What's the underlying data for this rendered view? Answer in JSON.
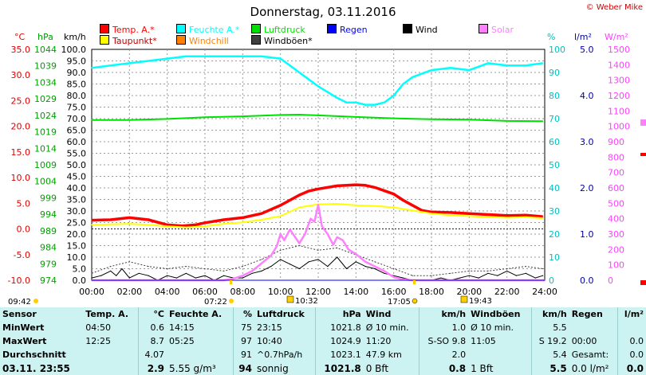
{
  "title": "Donnerstag, 03.11.2016",
  "copyright": "© Weber Mike",
  "legend": [
    {
      "label": "Temp. A.*",
      "color": "#ff0000"
    },
    {
      "label": "Feuchte A.*",
      "color": "#00ffff"
    },
    {
      "label": "Luftdruck",
      "color": "#00e000"
    },
    {
      "label": "Regen",
      "color": "#0000ff"
    },
    {
      "label": "Wind",
      "color": "#000000"
    },
    {
      "label": "Solar",
      "color": "#ff80ff"
    },
    {
      "label": "Taupunkt*",
      "color": "#ffff00"
    },
    {
      "label": "Windchill",
      "color": "#ff8000"
    },
    {
      "label": "Windböen*",
      "color": "#404040"
    }
  ],
  "axis_units": {
    "temp": "°C",
    "pressure": "hPa",
    "wind": "km/h",
    "humidity": "%",
    "rain": "l/m²",
    "solar": "W/m²"
  },
  "chart_data": {
    "type": "line",
    "title": "Donnerstag, 03.11.2016",
    "x_ticks": [
      "00:00",
      "02:00",
      "04:00",
      "06:00",
      "08:00",
      "10:00",
      "12:00",
      "14:00",
      "16:00",
      "18:00",
      "20:00",
      "22:00",
      "24:00"
    ],
    "axes": {
      "temp": {
        "label": "°C",
        "ylim": [
          -10,
          35
        ],
        "ticks": [
          "35.0",
          "30.0",
          "25.0",
          "20.0",
          "15.0",
          "10.0",
          "5.0",
          "0.0",
          "-5.0",
          "-10.0"
        ],
        "color": "#e00000"
      },
      "pressure": {
        "label": "hPa",
        "ylim": [
          974,
          1044
        ],
        "ticks": [
          "1044",
          "1039",
          "1034",
          "1029",
          "1024",
          "1019",
          "1014",
          "1009",
          "1004",
          "999",
          "994",
          "989",
          "984",
          "979",
          "974"
        ],
        "color": "#00a000"
      },
      "wind": {
        "label": "km/h",
        "ylim": [
          0,
          100
        ],
        "ticks": [
          "100.0",
          "95.0",
          "90.0",
          "85.0",
          "80.0",
          "75.0",
          "70.0",
          "65.0",
          "60.0",
          "55.0",
          "50.0",
          "45.0",
          "40.0",
          "35.0",
          "30.0",
          "25.0",
          "20.0",
          "15.0",
          "10.0",
          "5.0",
          "0.0"
        ],
        "color": "#000000"
      },
      "humidity": {
        "label": "%",
        "ylim": [
          0,
          100
        ],
        "ticks": [
          "100",
          "90",
          "80",
          "70",
          "60",
          "50",
          "40",
          "30",
          "20",
          "10",
          "0"
        ],
        "color": "#00c0c0"
      },
      "rain": {
        "label": "l/m²",
        "ylim": [
          0,
          5
        ],
        "ticks": [
          "5.0",
          "4.0",
          "3.0",
          "2.0",
          "1.0",
          "0.0"
        ],
        "color": "#0000a0"
      },
      "solar": {
        "label": "W/m²",
        "ylim": [
          0,
          1500
        ],
        "ticks": [
          "1500",
          "1400",
          "1300",
          "1200",
          "1100",
          "1000",
          "900",
          "800",
          "700",
          "600",
          "500",
          "400",
          "300",
          "200",
          "100",
          "0"
        ],
        "color": "#ff40ff"
      }
    },
    "series": [
      {
        "name": "Temp. A.*",
        "axis": "temp",
        "color": "#ff0000",
        "x": [
          0,
          1,
          2,
          3,
          4,
          4.8,
          5.5,
          6,
          7,
          8,
          9,
          10,
          11,
          11.5,
          12,
          13,
          14,
          14.5,
          15,
          16,
          16.5,
          17,
          17.5,
          18,
          19,
          20,
          21,
          22,
          23,
          23.9
        ],
        "y": [
          1.7,
          1.8,
          2.2,
          1.8,
          0.8,
          0.6,
          0.8,
          1.2,
          1.8,
          2.2,
          3.0,
          4.6,
          6.6,
          7.4,
          7.8,
          8.4,
          8.6,
          8.5,
          8.1,
          6.8,
          5.6,
          4.6,
          3.6,
          3.3,
          3.2,
          3.0,
          2.8,
          2.6,
          2.7,
          2.4
        ]
      },
      {
        "name": "Taupunkt*",
        "axis": "temp",
        "color": "#ffff00",
        "x": [
          0,
          1,
          2,
          3,
          4,
          5,
          6,
          7,
          8,
          9,
          10,
          11,
          12,
          13,
          14,
          15,
          16,
          17,
          18,
          19,
          20,
          21,
          22,
          23,
          23.9
        ],
        "y": [
          0.8,
          0.9,
          1.0,
          0.8,
          0.5,
          0.3,
          0.5,
          1.0,
          1.3,
          1.8,
          2.5,
          4.2,
          4.8,
          4.9,
          4.6,
          4.5,
          4.2,
          3.6,
          3.0,
          2.7,
          2.5,
          2.3,
          2.2,
          2.3,
          2.1
        ]
      },
      {
        "name": "Feuchte A.*",
        "axis": "humidity",
        "color": "#00ffff",
        "x": [
          0,
          1,
          2,
          3,
          4,
          5,
          6,
          7,
          8,
          9,
          10,
          10.5,
          11,
          12,
          13,
          13.5,
          14,
          14.5,
          15,
          15.5,
          16,
          16.5,
          17,
          18,
          19,
          20,
          21,
          22,
          23,
          23.9
        ],
        "y": [
          92,
          93,
          94,
          95,
          96,
          97,
          97,
          97,
          97,
          97,
          96,
          93,
          90,
          84,
          79,
          77,
          77,
          76,
          76,
          77,
          80,
          85,
          88,
          91,
          92,
          91,
          94,
          93,
          93,
          94
        ]
      },
      {
        "name": "Luftdruck",
        "axis": "pressure",
        "color": "#00e000",
        "x": [
          0,
          2,
          4,
          6,
          8,
          10,
          11,
          12,
          14,
          16,
          18,
          20,
          22,
          23.9
        ],
        "y": [
          1022.6,
          1022.6,
          1022.9,
          1023.4,
          1023.7,
          1024.1,
          1024.2,
          1024.0,
          1023.5,
          1023.1,
          1022.8,
          1022.7,
          1022.3,
          1022.2
        ]
      },
      {
        "name": "Wind",
        "axis": "wind",
        "color": "#000000",
        "x": [
          0,
          0.5,
          1,
          1.3,
          1.6,
          2,
          2.5,
          3,
          3.5,
          4,
          4.5,
          5,
          5.5,
          6,
          6.5,
          7,
          7.5,
          8,
          8.5,
          9,
          9.5,
          10,
          10.5,
          11,
          11.5,
          12,
          12.5,
          13,
          13.5,
          14,
          14.5,
          15,
          15.5,
          16,
          16.5,
          17,
          17.5,
          18,
          18.5,
          19,
          19.5,
          20,
          20.5,
          21,
          21.5,
          22,
          22.5,
          23,
          23.5,
          23.9
        ],
        "y": [
          1,
          2,
          4,
          2,
          5,
          1,
          3,
          2,
          0,
          2,
          1,
          3,
          1,
          2,
          0,
          2,
          1,
          1,
          3,
          4,
          6,
          9,
          7,
          5,
          8,
          9,
          6,
          10,
          5,
          8,
          6,
          5,
          3,
          2,
          1,
          0,
          0,
          0,
          1,
          0,
          1,
          2,
          1,
          3,
          2,
          4,
          2,
          3,
          1,
          2
        ]
      },
      {
        "name": "Windböen*",
        "axis": "wind",
        "color": "#404040",
        "x": [
          0,
          1,
          2,
          3,
          4,
          5,
          6,
          7,
          8,
          9,
          10,
          11,
          12,
          13,
          14,
          15,
          16,
          17,
          18,
          19,
          20,
          21,
          22,
          23,
          23.9
        ],
        "y": [
          3,
          6,
          8,
          6,
          5,
          6,
          5,
          4,
          6,
          9,
          13,
          15,
          13,
          14,
          11,
          8,
          5,
          2,
          2,
          3,
          4,
          4,
          5,
          6,
          5
        ]
      },
      {
        "name": "Solar",
        "axis": "solar",
        "color": "#ff80ff",
        "x": [
          0,
          7,
          7.5,
          8,
          8.5,
          9,
          9.5,
          9.8,
          10,
          10.2,
          10.5,
          11,
          11.3,
          11.6,
          11.8,
          12,
          12.2,
          12.5,
          12.8,
          13,
          13.3,
          13.6,
          14,
          14.5,
          15,
          15.5,
          16,
          16.5,
          17,
          24
        ],
        "y": [
          0,
          0,
          10,
          30,
          60,
          110,
          160,
          220,
          300,
          260,
          330,
          240,
          300,
          400,
          380,
          490,
          350,
          300,
          230,
          280,
          260,
          200,
          170,
          120,
          90,
          60,
          20,
          5,
          0,
          0
        ]
      },
      {
        "name": "Regen",
        "axis": "rain",
        "color": "#0000ff",
        "x": [
          0,
          24
        ],
        "y": [
          0,
          0
        ]
      }
    ]
  },
  "sun_marks": {
    "sunrise": "07:22",
    "sunset": "17:05",
    "moonrise": "09:42",
    "moon_a": "10:32",
    "moon_b": "19:43"
  },
  "stats_table": {
    "headers": [
      "Sensor",
      "Temp. A.",
      "°C",
      "Feuchte A.",
      "%",
      "Luftdruck",
      "hPa",
      "Wind",
      "km/h",
      "Windböen",
      "km/h",
      "Regen",
      "l/m²"
    ],
    "rows": [
      [
        "MinWert",
        "04:50",
        "0.6",
        "14:15",
        "75",
        "23:15",
        "1021.8",
        "Ø 10 min.",
        "1.0",
        "Ø 10 min.",
        "5.5",
        "",
        ""
      ],
      [
        "MaxWert",
        "12:25",
        "8.7",
        "05:25",
        "97",
        "10:40",
        "1024.9",
        "11:20",
        "S-SO 9.8",
        "11:05",
        "S 19.2",
        "00:00",
        "0.0"
      ],
      [
        "Durchschnitt",
        "",
        "4.07",
        "",
        "91",
        "^0.7hPa/h",
        "1023.1",
        "47.9 km",
        "2.0",
        "",
        "5.4",
        "Gesamt:",
        "0.0"
      ],
      [
        "03.11. 23:55",
        "",
        "2.9",
        "5.55 g/m³",
        "94",
        "sonnig",
        "1021.8",
        "0 Bft",
        "0.8",
        "1 Bft",
        "5.5",
        "0.0 l/m²",
        "0.0"
      ]
    ]
  }
}
